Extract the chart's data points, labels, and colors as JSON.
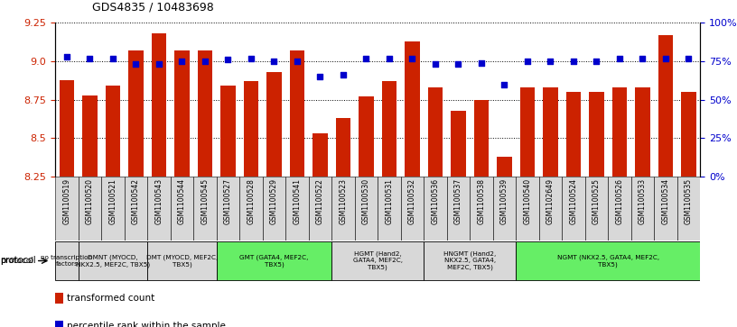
{
  "title": "GDS4835 / 10483698",
  "samples": [
    "GSM1100519",
    "GSM1100520",
    "GSM1100521",
    "GSM1100542",
    "GSM1100543",
    "GSM1100544",
    "GSM1100545",
    "GSM1100527",
    "GSM1100528",
    "GSM1100529",
    "GSM1100541",
    "GSM1100522",
    "GSM1100523",
    "GSM1100530",
    "GSM1100531",
    "GSM1100532",
    "GSM1100536",
    "GSM1100537",
    "GSM1100538",
    "GSM1100539",
    "GSM1100540",
    "GSM1102649",
    "GSM1100524",
    "GSM1100525",
    "GSM1100526",
    "GSM1100533",
    "GSM1100534",
    "GSM1100535"
  ],
  "bar_values": [
    8.88,
    8.78,
    8.84,
    9.07,
    9.18,
    9.07,
    9.07,
    8.84,
    8.87,
    8.93,
    9.07,
    8.53,
    8.63,
    8.77,
    8.87,
    9.13,
    8.83,
    8.68,
    8.75,
    8.38,
    8.83,
    8.83,
    8.8,
    8.8,
    8.83,
    8.83,
    9.17,
    8.8
  ],
  "dot_values": [
    78,
    77,
    77,
    73,
    73,
    75,
    75,
    76,
    77,
    75,
    75,
    65,
    66,
    77,
    77,
    77,
    73,
    73,
    74,
    60,
    75,
    75,
    75,
    75,
    77,
    77,
    77,
    77
  ],
  "ylim_left": [
    8.25,
    9.25
  ],
  "ylim_right": [
    0,
    100
  ],
  "yticks_left": [
    8.25,
    8.5,
    8.75,
    9.0,
    9.25
  ],
  "yticks_right": [
    0,
    25,
    50,
    75,
    100
  ],
  "bar_color": "#cc2200",
  "dot_color": "#0000cc",
  "bg_color": "#ffffff",
  "protocols": [
    {
      "label": "no transcription\nfactors",
      "start": 0,
      "end": 1,
      "color": "#d8d8d8"
    },
    {
      "label": "DMNT (MYOCD,\nNKX2.5, MEF2C, TBX5)",
      "start": 1,
      "end": 4,
      "color": "#d8d8d8"
    },
    {
      "label": "DMT (MYOCD, MEF2C,\nTBX5)",
      "start": 4,
      "end": 7,
      "color": "#d8d8d8"
    },
    {
      "label": "GMT (GATA4, MEF2C,\nTBX5)",
      "start": 7,
      "end": 12,
      "color": "#66ee66"
    },
    {
      "label": "HGMT (Hand2,\nGATA4, MEF2C,\nTBX5)",
      "start": 12,
      "end": 16,
      "color": "#d8d8d8"
    },
    {
      "label": "HNGMT (Hand2,\nNKX2.5, GATA4,\nMEF2C, TBX5)",
      "start": 16,
      "end": 20,
      "color": "#d8d8d8"
    },
    {
      "label": "NGMT (NKX2.5, GATA4, MEF2C,\nTBX5)",
      "start": 20,
      "end": 28,
      "color": "#66ee66"
    }
  ]
}
